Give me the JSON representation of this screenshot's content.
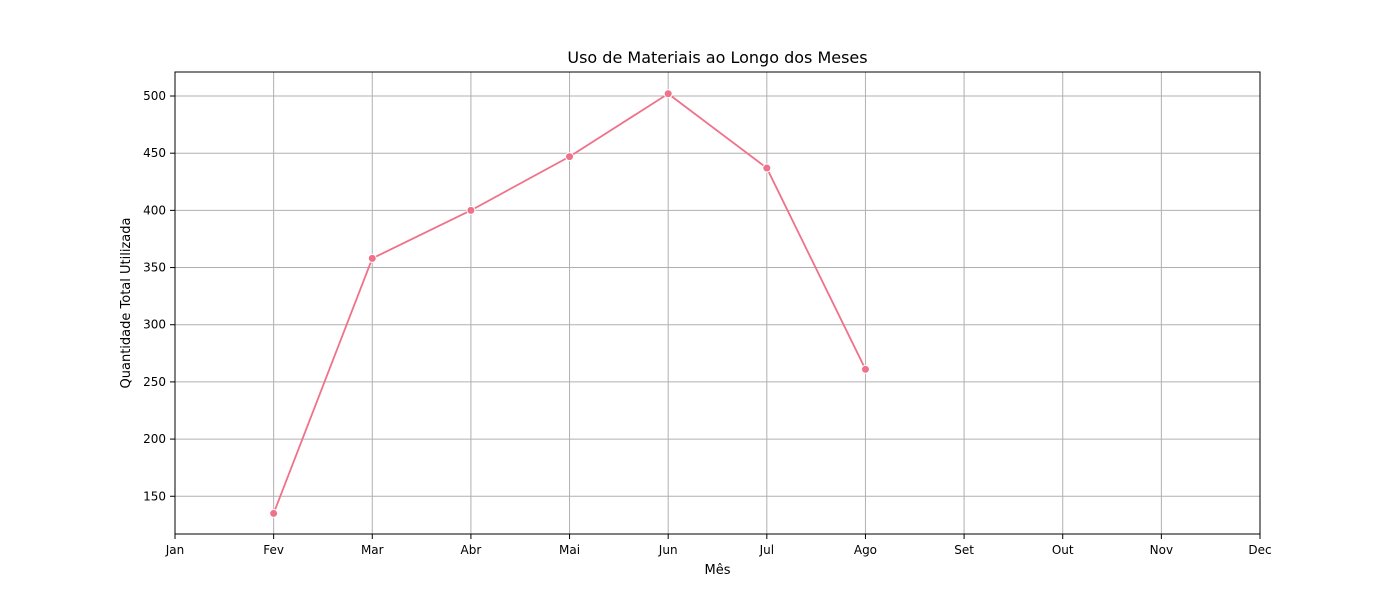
{
  "chart_data": {
    "type": "line",
    "title": "Uso de Materiais ao Longo dos Meses",
    "xlabel": "Mês",
    "ylabel": "Quantidade Total Utilizada",
    "categories": [
      "Jan",
      "Fev",
      "Mar",
      "Abr",
      "Mai",
      "Jun",
      "Jul",
      "Ago",
      "Set",
      "Out",
      "Nov",
      "Dec"
    ],
    "yticks": [
      150,
      200,
      250,
      300,
      350,
      400,
      450,
      500
    ],
    "ylim": [
      117,
      521
    ],
    "grid": true,
    "series": [
      {
        "color": "#f0718a",
        "points": [
          {
            "x": "Fev",
            "y": 135
          },
          {
            "x": "Mar",
            "y": 358
          },
          {
            "x": "Abr",
            "y": 400
          },
          {
            "x": "Mai",
            "y": 447
          },
          {
            "x": "Jun",
            "y": 502
          },
          {
            "x": "Jul",
            "y": 437
          },
          {
            "x": "Ago",
            "y": 261
          }
        ]
      }
    ]
  }
}
